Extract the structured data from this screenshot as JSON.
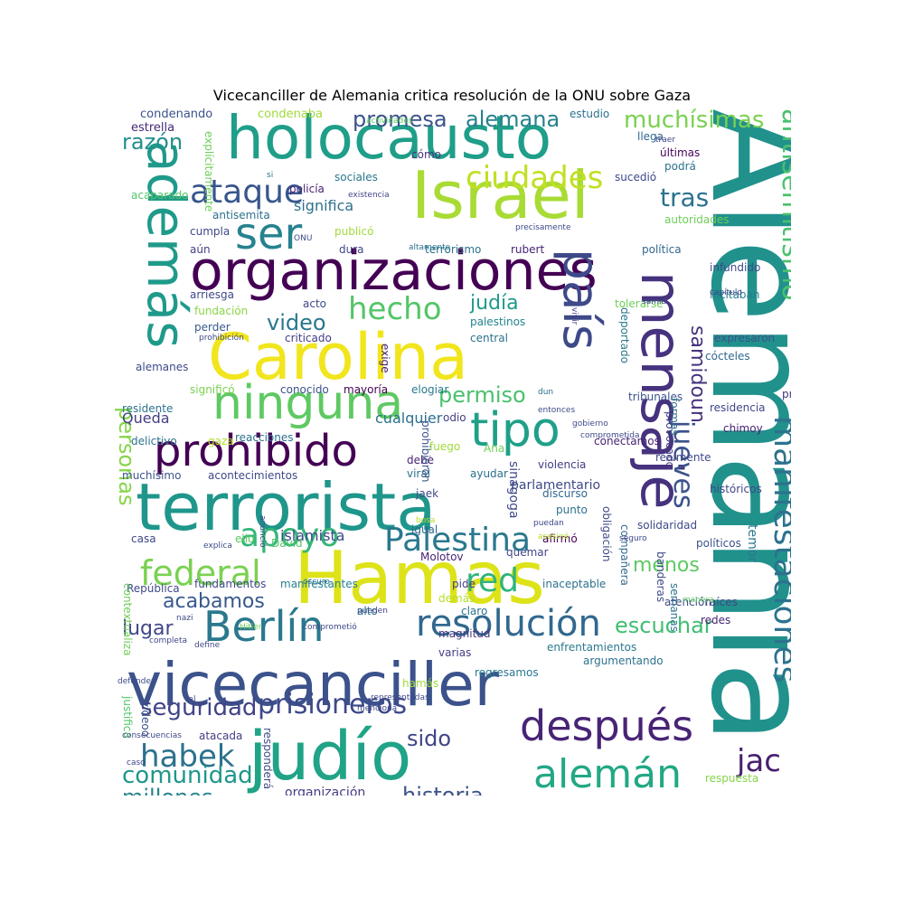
{
  "title": "Vicecanciller de Alemania critica resolución de la ONU sobre Gaza",
  "palette": [
    "#440154",
    "#482878",
    "#3e4989",
    "#31688e",
    "#26828e",
    "#1f9e89",
    "#35b779",
    "#6ece58",
    "#b5de2b",
    "#fde725"
  ],
  "words": [
    {
      "text": "Alemania",
      "c": "#21918c"
    },
    {
      "text": "Hamas",
      "c": "#dde318"
    },
    {
      "text": "terrorista",
      "c": "#1f968b"
    },
    {
      "text": "vicecanciller",
      "c": "#3b528b"
    },
    {
      "text": "judío",
      "c": "#20a386"
    },
    {
      "text": "organizaciones",
      "c": "#440154"
    },
    {
      "text": "Carolina",
      "c": "#f1e51d"
    },
    {
      "text": "holocausto",
      "c": "#1f9e89"
    },
    {
      "text": "Israel",
      "c": "#a8db34"
    },
    {
      "text": "mensaje",
      "c": "#46327e"
    },
    {
      "text": "además",
      "c": "#1f9a8a"
    },
    {
      "text": "ninguna",
      "c": "#5ec962"
    },
    {
      "text": "prohibido",
      "c": "#440154"
    },
    {
      "text": "tipo",
      "c": "#1fa088"
    },
    {
      "text": "país",
      "c": "#3e4989"
    },
    {
      "text": "Berlín",
      "c": "#2a788e"
    },
    {
      "text": "después",
      "c": "#482475"
    },
    {
      "text": "alemán",
      "c": "#22a884"
    },
    {
      "text": "resolución",
      "c": "#31688e"
    },
    {
      "text": "manifestaciones",
      "c": "#2c728e"
    },
    {
      "text": "ser",
      "c": "#26828e"
    },
    {
      "text": "apoyo",
      "c": "#35b779"
    },
    {
      "text": "Palestina",
      "c": "#2a788e"
    },
    {
      "text": "federal",
      "c": "#7ad151"
    },
    {
      "text": "ataque",
      "c": "#39568c"
    },
    {
      "text": "ciudades",
      "c": "#c2df23"
    },
    {
      "text": "antisemitismo",
      "c": "#4ac16d"
    },
    {
      "text": "jueves",
      "c": "#3b528b"
    },
    {
      "text": "hecho",
      "c": "#54c568"
    },
    {
      "text": "habek",
      "c": "#2c728e"
    },
    {
      "text": "jac",
      "c": "#481f70"
    },
    {
      "text": "red",
      "c": "#2fb47c"
    },
    {
      "text": "personas",
      "c": "#86d549"
    },
    {
      "text": "prisioneros",
      "c": "#3e4989"
    },
    {
      "text": "seguridad",
      "c": "#414487"
    },
    {
      "text": "comunidad",
      "c": "#1f968b"
    },
    {
      "text": "millones",
      "c": "#25848e"
    },
    {
      "text": "historia",
      "c": "#3b528b"
    },
    {
      "text": "escuchar",
      "c": "#40bd72"
    },
    {
      "text": "acabamos",
      "c": "#38598c"
    },
    {
      "text": "lugar",
      "c": "#404688"
    },
    {
      "text": "muchísimas",
      "c": "#7ad151"
    },
    {
      "text": "promesa",
      "c": "#3b528b"
    },
    {
      "text": "alemana",
      "c": "#26828e"
    },
    {
      "text": "tras",
      "c": "#2c728e"
    },
    {
      "text": "video",
      "c": "#2a788e"
    },
    {
      "text": "judía",
      "c": "#1f9a8a"
    },
    {
      "text": "permiso",
      "c": "#4ac16d"
    },
    {
      "text": "samidoun",
      "c": "#46337e"
    },
    {
      "text": "razón",
      "c": "#218f8d"
    },
    {
      "text": "menos",
      "c": "#5ec962"
    },
    {
      "text": "sido",
      "c": "#404588"
    },
    {
      "text": "significa",
      "c": "#2d708e"
    },
    {
      "text": "cualquier",
      "c": "#2c728e"
    },
    {
      "text": "islamista",
      "c": "#3e4989"
    },
    {
      "text": "Queda",
      "c": "#433e85"
    },
    {
      "text": "organización",
      "c": "#433e85"
    },
    {
      "text": "condenando",
      "c": "#3b528b"
    },
    {
      "text": "estrella",
      "c": "#482878"
    },
    {
      "text": "condenaba",
      "c": "#a0da39"
    },
    {
      "text": "estudio",
      "c": "#2c728e"
    },
    {
      "text": "llega",
      "c": "#31688e"
    },
    {
      "text": "últimas",
      "c": "#450559"
    },
    {
      "text": "cómo",
      "c": "#46327e"
    },
    {
      "text": "sociales",
      "c": "#2a788e"
    },
    {
      "text": "podrá",
      "c": "#2c728e"
    },
    {
      "text": "sucedió",
      "c": "#3e4989"
    },
    {
      "text": "antisemita",
      "c": "#2d708e"
    },
    {
      "text": "acaparado",
      "c": "#52c569"
    },
    {
      "text": "policía",
      "c": "#482475"
    },
    {
      "text": "autoridades",
      "c": "#6ece58"
    },
    {
      "text": "publicó",
      "c": "#a0da39"
    },
    {
      "text": "cumpla",
      "c": "#3e4989"
    },
    {
      "text": "aún",
      "c": "#433e85"
    },
    {
      "text": "dura",
      "c": "#404688"
    },
    {
      "text": "terrorismo",
      "c": "#2c728e"
    },
    {
      "text": "rubert",
      "c": "#482475"
    },
    {
      "text": "política",
      "c": "#31688e"
    },
    {
      "text": "infundido",
      "c": "#3e4989"
    },
    {
      "text": "incitaban",
      "c": "#287d8e"
    },
    {
      "text": "arriesga",
      "c": "#3e4989"
    },
    {
      "text": "fundación",
      "c": "#8bd646"
    },
    {
      "text": "perder",
      "c": "#38598c"
    },
    {
      "text": "acto",
      "c": "#3e4989"
    },
    {
      "text": "criticado",
      "c": "#433e85"
    },
    {
      "text": "palestinos",
      "c": "#25848e"
    },
    {
      "text": "central",
      "c": "#2c728e"
    },
    {
      "text": "tolerarse",
      "c": "#6ece58"
    },
    {
      "text": "deportado",
      "c": "#2a788e"
    },
    {
      "text": "expresaron",
      "c": "#3b528b"
    },
    {
      "text": "cócteles",
      "c": "#31688e"
    },
    {
      "text": "alemanes",
      "c": "#3e4989"
    },
    {
      "text": "exige",
      "c": "#482475"
    },
    {
      "text": "significó",
      "c": "#7ad151"
    },
    {
      "text": "conocido",
      "c": "#3b528b"
    },
    {
      "text": "mayoría",
      "c": "#440154"
    },
    {
      "text": "elogiar",
      "c": "#2a788e"
    },
    {
      "text": "tribunales",
      "c": "#3b528b"
    },
    {
      "text": "prop",
      "c": "#46337e"
    },
    {
      "text": "residente",
      "c": "#2c728e"
    },
    {
      "text": "residencia",
      "c": "#404688"
    },
    {
      "text": "reacciones",
      "c": "#2c728e"
    },
    {
      "text": "odio",
      "c": "#433e85"
    },
    {
      "text": "chimoy",
      "c": "#482475"
    },
    {
      "text": "delictivo",
      "c": "#2c728e"
    },
    {
      "text": "gaza",
      "c": "#b5de2b"
    },
    {
      "text": "conectamos",
      "c": "#482475"
    },
    {
      "text": "Ana",
      "c": "#6ece58"
    },
    {
      "text": "realmente",
      "c": "#3e4989"
    },
    {
      "text": "muchísimo",
      "c": "#3b528b"
    },
    {
      "text": "acontecimientos",
      "c": "#3e4989"
    },
    {
      "text": "debe",
      "c": "#482475"
    },
    {
      "text": "fuego",
      "c": "#a0da39"
    },
    {
      "text": "violencia",
      "c": "#433e85"
    },
    {
      "text": "viral",
      "c": "#2c728e"
    },
    {
      "text": "ayudar",
      "c": "#2c728e"
    },
    {
      "text": "históricos",
      "c": "#404688"
    },
    {
      "text": "discurso",
      "c": "#31688e"
    },
    {
      "text": "punto",
      "c": "#2c728e"
    },
    {
      "text": "jaek",
      "c": "#3e4989"
    },
    {
      "text": "casa",
      "c": "#3e4989"
    },
    {
      "text": "ello",
      "c": "#5ec962"
    },
    {
      "text": "David",
      "c": "#52c569"
    },
    {
      "text": "políticos",
      "c": "#3b528b"
    },
    {
      "text": "afirmó",
      "c": "#440154"
    },
    {
      "text": "igual",
      "c": "#31688e"
    },
    {
      "text": "solidaridad",
      "c": "#3e4989"
    },
    {
      "text": "Molotov",
      "c": "#482475"
    },
    {
      "text": "quemar",
      "c": "#404688"
    },
    {
      "text": "República",
      "c": "#3e4989"
    },
    {
      "text": "fundamentos",
      "c": "#3e4989"
    },
    {
      "text": "manifestantes",
      "c": "#26828e"
    },
    {
      "text": "pide",
      "c": "#433e85"
    },
    {
      "text": "demás",
      "c": "#b5de2b"
    },
    {
      "text": "inaceptable",
      "c": "#2c728e"
    },
    {
      "text": "atención",
      "c": "#3e4989"
    },
    {
      "text": "raíces",
      "c": "#404688"
    },
    {
      "text": "alto",
      "c": "#2c728e"
    },
    {
      "text": "claro",
      "c": "#2c728e"
    },
    {
      "text": "enfrentamientos",
      "c": "#2a788e"
    },
    {
      "text": "magnitud",
      "c": "#46337e"
    },
    {
      "text": "varias",
      "c": "#433e85"
    },
    {
      "text": "redes",
      "c": "#482475"
    },
    {
      "text": "argumentando",
      "c": "#2c728e"
    },
    {
      "text": "regresamos",
      "c": "#2a788e"
    },
    {
      "text": "atacada",
      "c": "#433e85"
    },
    {
      "text": "pintada",
      "c": "#3e4989"
    },
    {
      "text": "respuesta",
      "c": "#86d549"
    },
    {
      "text": "hamás",
      "c": "#a0da39"
    },
    {
      "text": "responderá",
      "c": "#3e4989"
    },
    {
      "text": "sinagoga",
      "c": "#3e4989"
    },
    {
      "text": "videoo",
      "c": "#3b528b"
    },
    {
      "text": "justifica",
      "c": "#52c569"
    },
    {
      "text": "contextualiza",
      "c": "#6ece58"
    },
    {
      "text": "prohibieron",
      "c": "#3b528b"
    },
    {
      "text": "explícitamente",
      "c": "#6ece58"
    },
    {
      "text": "obligación",
      "c": "#3e4989"
    },
    {
      "text": "compañera",
      "c": "#31688e"
    },
    {
      "text": "provocado",
      "c": "#433e85"
    },
    {
      "text": "formas",
      "c": "#2c728e"
    },
    {
      "text": "banderas",
      "c": "#3e4989"
    },
    {
      "text": "semanas",
      "c": "#2c728e"
    },
    {
      "text": "parlamentario",
      "c": "#3e4989"
    },
    {
      "text": "temor",
      "c": "#2a788e"
    },
    {
      "text": "actividades",
      "c": "#5ec962"
    },
    {
      "text": "si",
      "c": "#2c728e"
    },
    {
      "text": "existencia",
      "c": "#404688"
    },
    {
      "text": "ONU",
      "c": "#3e4989"
    },
    {
      "text": "altamente",
      "c": "#2c728e"
    },
    {
      "text": "precisamente",
      "c": "#3e4989"
    },
    {
      "text": "samid",
      "c": "#3e4989"
    },
    {
      "text": "prohibición",
      "c": "#3e4989"
    },
    {
      "text": "vivir",
      "c": "#433e85"
    },
    {
      "text": "dun",
      "c": "#2c728e"
    },
    {
      "text": "entonces",
      "c": "#3e4989"
    },
    {
      "text": "gobierno",
      "c": "#3e4989"
    },
    {
      "text": "comprometida",
      "c": "#3e4989"
    },
    {
      "text": "anunció",
      "c": "#404688"
    },
    {
      "text": "bosa",
      "c": "#b5de2b"
    },
    {
      "text": "puedan",
      "c": "#3e4989"
    },
    {
      "text": "asesinó",
      "c": "#b5de2b"
    },
    {
      "text": "seguro",
      "c": "#3e4989"
    },
    {
      "text": "explica",
      "c": "#3e4989"
    },
    {
      "text": "oscuro",
      "c": "#2c728e"
    },
    {
      "text": "pueden",
      "c": "#3e4989"
    },
    {
      "text": "manera",
      "c": "#5ec962"
    },
    {
      "text": "nazi",
      "c": "#3e4989"
    },
    {
      "text": "Hitler",
      "c": "#6ece58"
    },
    {
      "text": "comprometió",
      "c": "#3e4989"
    },
    {
      "text": "completa",
      "c": "#3e4989"
    },
    {
      "text": "define",
      "c": "#3e4989"
    },
    {
      "text": "defender",
      "c": "#3e4989"
    },
    {
      "text": "tal",
      "c": "#3e4989"
    },
    {
      "text": "menciona",
      "c": "#3e4989"
    },
    {
      "text": "representadas",
      "c": "#3e4989"
    },
    {
      "text": "consecuencias",
      "c": "#3e4989"
    },
    {
      "text": "caso",
      "c": "#3e4989"
    },
    {
      "text": "traer",
      "c": "#3e4989"
    },
    {
      "text": "capítulo",
      "c": "#3e4989"
    }
  ]
}
